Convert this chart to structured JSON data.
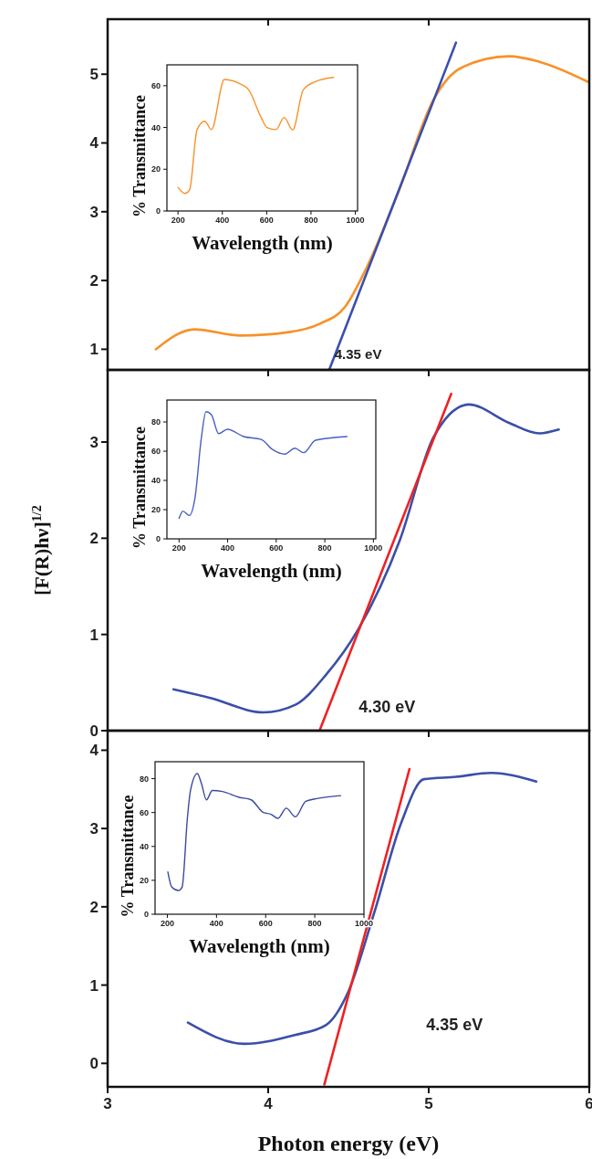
{
  "chart_data": [
    {
      "type": "line",
      "xlim": [
        3,
        6
      ],
      "ylim": [
        0.7,
        5.8
      ],
      "xticks": [
        3,
        4,
        5,
        6
      ],
      "yticks": [
        1,
        2,
        3,
        4,
        5
      ],
      "tick_labels": "y",
      "annotations": [
        "4.35 eV"
      ],
      "series": [
        {
          "type": "line",
          "color": "#f7922a",
          "x": [
            3.3,
            3.54,
            3.83,
            4.13,
            4.32,
            4.48,
            4.61,
            4.81,
            5.03,
            5.2,
            5.5,
            5.69,
            6.0
          ],
          "values": [
            1.0,
            1.29,
            1.2,
            1.25,
            1.37,
            1.62,
            2.17,
            3.28,
            4.63,
            5.09,
            5.26,
            5.18,
            4.88
          ]
        },
        {
          "type": "line",
          "color": "#3a4fb0",
          "x": [
            4.38,
            5.17
          ],
          "values": [
            0.7,
            5.46
          ]
        }
      ]
    },
    {
      "type": "line",
      "xlabel": "Wavelength (nm)",
      "ylabel": "% Transmittance",
      "xlim": [
        150,
        1010
      ],
      "ylim": [
        0,
        70
      ],
      "xticks": [
        200,
        400,
        600,
        800,
        1000
      ],
      "yticks": [
        0,
        20,
        40,
        60
      ],
      "series": [
        {
          "color": "#f7922a",
          "x": [
            200,
            231,
            252,
            286,
            320,
            351,
            409,
            478,
            519,
            574,
            601,
            642,
            679,
            717,
            765,
            820,
            902
          ],
          "values": [
            11.3,
            8.4,
            10,
            39,
            43,
            39,
            63,
            61,
            58,
            45,
            40,
            39,
            44.8,
            38.8,
            58,
            62,
            64
          ]
        }
      ]
    },
    {
      "type": "line",
      "ylabel": "[F(R)hν]$^{1/2}$",
      "xlim": [
        3,
        6
      ],
      "ylim": [
        0,
        3.75
      ],
      "xticks": [
        3,
        4,
        5,
        6
      ],
      "yticks": [
        0,
        1,
        2,
        3
      ],
      "tick_labels": "y",
      "annotations": [
        "4.30 eV"
      ],
      "series": [
        {
          "type": "line",
          "color": "#3a4fa8",
          "x": [
            3.41,
            3.64,
            3.97,
            4.17,
            4.36,
            4.56,
            4.82,
            5.03,
            5.25,
            5.5,
            5.69,
            5.81
          ],
          "values": [
            0.43,
            0.34,
            0.19,
            0.27,
            0.58,
            1.05,
            1.98,
            3.05,
            3.39,
            3.2,
            3.09,
            3.13
          ]
        },
        {
          "type": "line",
          "color": "#ee2222",
          "x": [
            4.32,
            5.14
          ],
          "values": [
            0,
            3.5
          ]
        }
      ]
    },
    {
      "type": "line",
      "xlabel": "Wavelength (nm)",
      "ylabel": "% Transmittance",
      "xlim": [
        150,
        1010
      ],
      "ylim": [
        0,
        95
      ],
      "xticks": [
        200,
        400,
        600,
        800,
        1000
      ],
      "yticks": [
        0,
        20,
        40,
        60,
        80
      ],
      "series": [
        {
          "color": "#4a5fc0",
          "x": [
            200,
            216,
            242,
            266,
            291,
            311,
            333,
            363,
            399,
            466,
            538,
            586,
            635,
            677,
            713,
            762,
            891
          ],
          "values": [
            14,
            19,
            16,
            28.5,
            68,
            87,
            85,
            72,
            75,
            70,
            68,
            61,
            58,
            62,
            59,
            67.5,
            70
          ]
        }
      ]
    },
    {
      "type": "line",
      "xlabel": "Photon energy (eV)",
      "xlim": [
        3,
        6
      ],
      "ylim": [
        -0.3,
        4.25
      ],
      "xticks": [
        3,
        4,
        5,
        6
      ],
      "yticks": [
        0,
        1,
        2,
        3,
        4
      ],
      "annotations": [
        "4.35 eV"
      ],
      "series": [
        {
          "type": "line",
          "color": "#3a4fa8",
          "x": [
            3.5,
            3.85,
            4.16,
            4.36,
            4.5,
            4.66,
            4.83,
            4.97,
            5.17,
            5.39,
            5.67
          ],
          "values": [
            0.52,
            0.25,
            0.36,
            0.49,
            0.92,
            1.92,
            3.08,
            3.63,
            3.66,
            3.71,
            3.6
          ]
        },
        {
          "type": "line",
          "color": "#ee2222",
          "x": [
            4.35,
            4.88
          ],
          "values": [
            -0.27,
            3.76
          ]
        }
      ]
    },
    {
      "type": "line",
      "xlabel": "Wavelength (nm)",
      "ylabel": "% Transmittance",
      "xlim": [
        150,
        1000
      ],
      "ylim": [
        0,
        90
      ],
      "xticks": [
        200,
        400,
        600,
        800,
        1000
      ],
      "yticks": [
        0,
        20,
        40,
        60,
        80
      ],
      "series": [
        {
          "color": "#3b4a9e",
          "x": [
            202,
            218,
            245,
            260,
            282,
            294,
            322,
            338,
            359,
            383,
            424,
            492,
            541,
            591,
            622,
            650,
            684,
            721,
            763,
            813,
            905
          ],
          "values": [
            25,
            16,
            14,
            16,
            57.5,
            73,
            83,
            77.5,
            67.5,
            73,
            72.4,
            69,
            67.5,
            60,
            59,
            56.6,
            62.6,
            57.5,
            66.6,
            68.4,
            70
          ]
        }
      ]
    }
  ]
}
